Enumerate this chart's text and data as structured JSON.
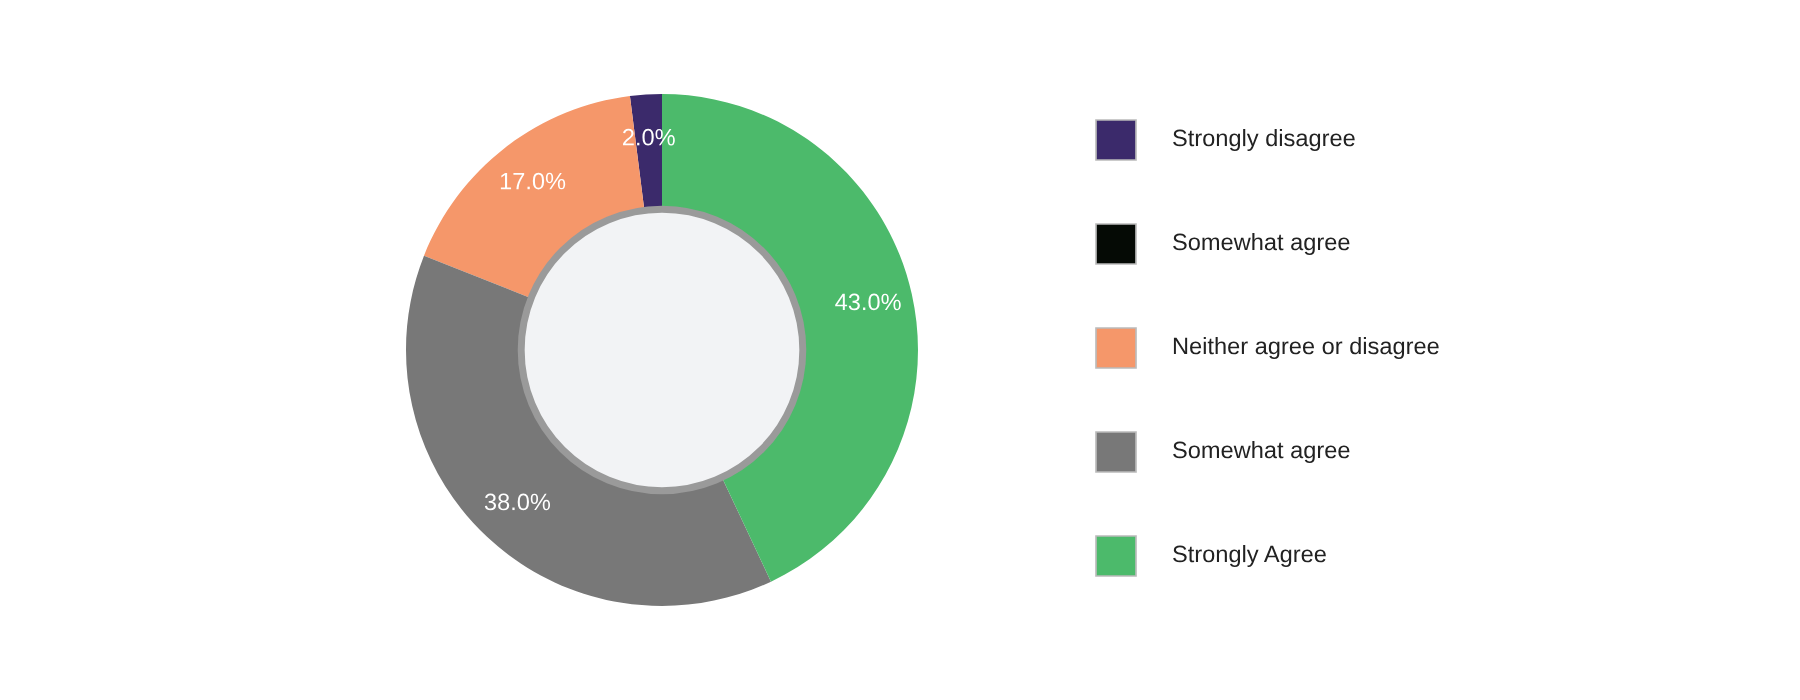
{
  "chart_data": {
    "type": "donut",
    "categories": [
      "Strongly disagree",
      "Somewhat agree",
      "Neither agree or disagree",
      "Somewhat agree",
      "Strongly Agree"
    ],
    "values": [
      2,
      0,
      17,
      38,
      43
    ],
    "colors": [
      "#3b2a6b",
      "#050a05",
      "#f5976a",
      "#787878",
      "#4cba6b"
    ],
    "value_labels": [
      "2.0%",
      null,
      "17.0%",
      "38.0%",
      "43.0%"
    ],
    "legend": "right"
  }
}
